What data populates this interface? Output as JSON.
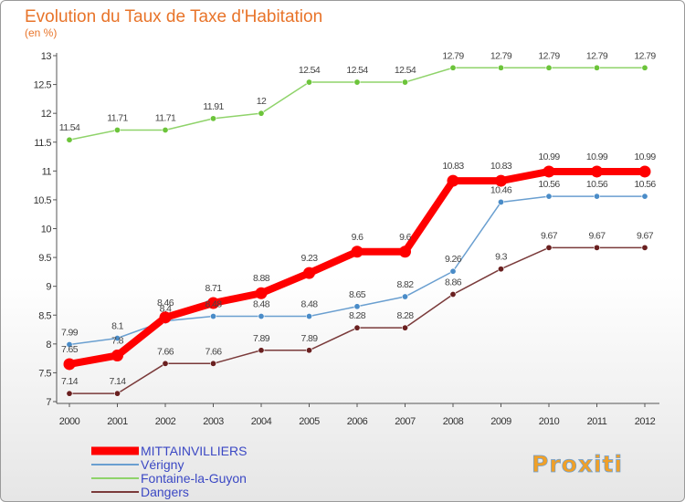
{
  "chart_data": {
    "type": "line",
    "title": "Evolution du Taux de Taxe d'Habitation",
    "subtitle": "(en %)",
    "x": [
      "2000",
      "2001",
      "2002",
      "2003",
      "2004",
      "2005",
      "2006",
      "2007",
      "2008",
      "2009",
      "2010",
      "2011",
      "2012"
    ],
    "ylim": [
      7,
      13
    ],
    "yticks": [
      "7",
      "7.5",
      "8",
      "8.5",
      "9",
      "9.5",
      "10",
      "10.5",
      "11",
      "11.5",
      "12",
      "12.5",
      "13"
    ],
    "grid": false,
    "legend_position": "bottom-left",
    "series": [
      {
        "name": "MITTAINVILLIERS",
        "color": "#ff0000",
        "values": [
          7.65,
          7.8,
          8.46,
          8.71,
          8.88,
          9.23,
          9.6,
          9.6,
          10.83,
          10.83,
          10.99,
          10.99,
          10.99
        ],
        "labels": [
          "7.65",
          "7.8",
          "8.46",
          "8.71",
          "8.88",
          "9.23",
          "9.6",
          "9.6",
          "10.83",
          "10.83",
          "10.99",
          "10.99",
          "10.99"
        ]
      },
      {
        "name": "Vérigny",
        "color": "#6a9fd0",
        "values": [
          7.99,
          8.1,
          8.4,
          8.48,
          8.48,
          8.48,
          8.65,
          8.82,
          9.26,
          10.46,
          10.56,
          10.56,
          10.56
        ],
        "labels": [
          "7.99",
          "8.1",
          "8.4",
          "8.48",
          "8.48",
          "8.48",
          "8.65",
          "8.82",
          "9.26",
          "10.46",
          "10.56",
          "10.56",
          "10.56"
        ]
      },
      {
        "name": "Fontaine-la-Guyon",
        "color": "#8fd36a",
        "values": [
          11.54,
          11.71,
          11.71,
          11.91,
          12,
          12.54,
          12.54,
          12.54,
          12.79,
          12.79,
          12.79,
          12.79,
          12.79
        ],
        "labels": [
          "11.54",
          "11.71",
          "11.71",
          "11.91",
          "12",
          "12.54",
          "12.54",
          "12.54",
          "12.79",
          "12.79",
          "12.79",
          "12.79",
          "12.79"
        ]
      },
      {
        "name": "Dangers",
        "color": "#7a3a3a",
        "values": [
          7.14,
          7.14,
          7.66,
          7.66,
          7.89,
          7.89,
          8.28,
          8.28,
          8.86,
          9.3,
          9.67,
          9.67,
          9.67
        ],
        "labels": [
          "7.14",
          "7.14",
          "7.66",
          "7.66",
          "7.89",
          "7.89",
          "8.28",
          "8.28",
          "8.86",
          "9.3",
          "9.67",
          "9.67",
          "9.67"
        ]
      }
    ]
  },
  "logo": {
    "text": "Proxiti"
  }
}
